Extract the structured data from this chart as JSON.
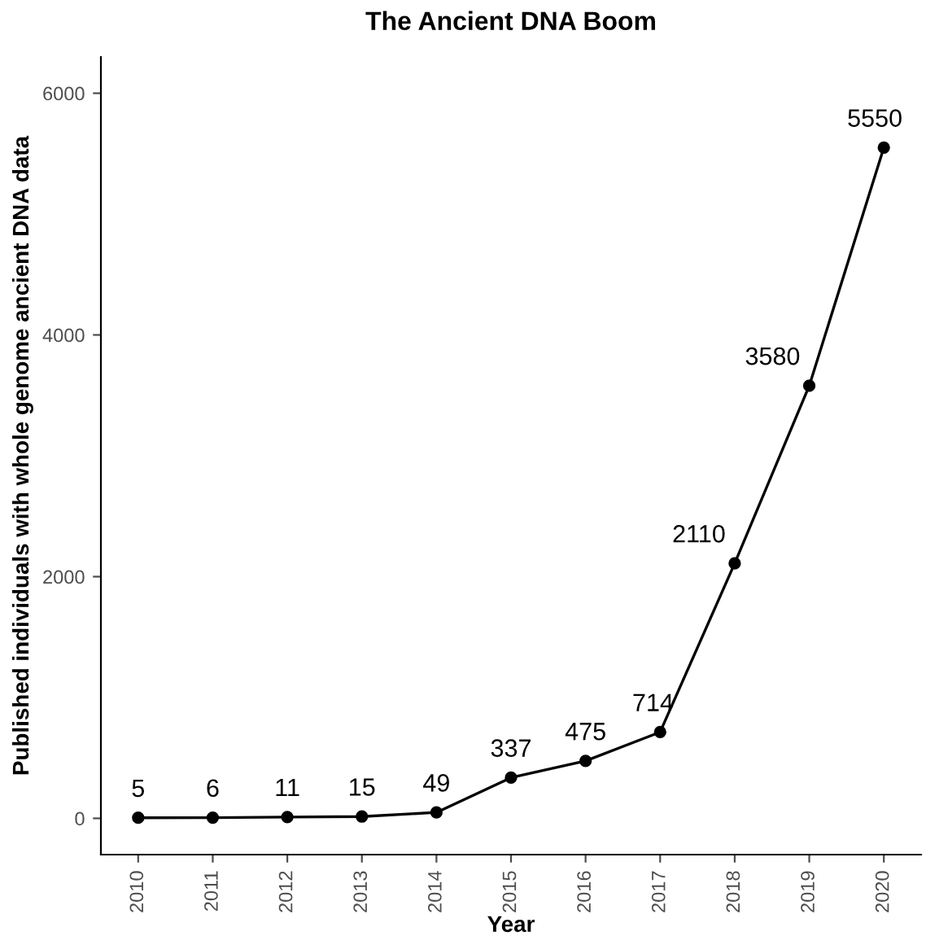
{
  "chart_data": {
    "type": "line",
    "title": "The Ancient DNA Boom",
    "xlabel": "Year",
    "ylabel": "Published individuals with whole genome ancient DNA data",
    "categories": [
      "2010",
      "2011",
      "2012",
      "2013",
      "2014",
      "2015",
      "2016",
      "2017",
      "2018",
      "2019",
      "2020"
    ],
    "series": [
      {
        "color": "#000000",
        "values": [
          5,
          6,
          11,
          15,
          49,
          337,
          475,
          714,
          2110,
          3580,
          5550
        ]
      }
    ],
    "ylim": [
      -300,
      6300
    ],
    "yticks": [
      0,
      2000,
      4000,
      6000
    ],
    "marker": "circle",
    "line_style": "solid",
    "data_labels": true,
    "grid": false,
    "legend": false
  }
}
